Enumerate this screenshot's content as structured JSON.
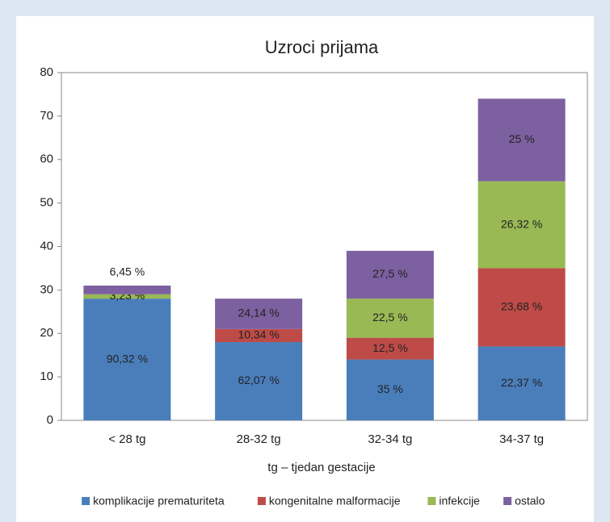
{
  "chart_data": {
    "type": "stacked_bar",
    "title": "Uzroci prijama",
    "x_label": "tg – tjedan gestacije",
    "categories": [
      "< 28 tg",
      "28-32 tg",
      "32-34 tg",
      "34-37 tg"
    ],
    "series": [
      {
        "name": "komplikacije prematuriteta",
        "color": "#4a7ebb",
        "values": [
          28,
          18,
          14,
          17
        ],
        "segment_labels": [
          "90,32 %",
          "62,07 %",
          "35 %",
          "22,37 %"
        ]
      },
      {
        "name": "kongenitalne malformacije",
        "color": "#be4b48",
        "values": [
          0,
          3,
          5,
          18
        ],
        "segment_labels": [
          null,
          "10,34 %",
          "12,5 %",
          "23,68 %"
        ]
      },
      {
        "name": "infekcije",
        "color": "#98b954",
        "values": [
          1,
          0,
          9,
          20
        ],
        "segment_labels": [
          "3,23 %",
          null,
          "22,5 %",
          "26,32 %"
        ]
      },
      {
        "name": "ostalo",
        "color": "#7d60a0",
        "values": [
          2,
          7,
          11,
          19
        ],
        "segment_labels": [
          "6,45 %",
          "24,14 %",
          "27,5 %",
          "25 %"
        ]
      }
    ],
    "ylim": [
      0,
      80
    ],
    "yticks": [
      0,
      10,
      20,
      30,
      40,
      50,
      60,
      70,
      80
    ],
    "grid": false,
    "legend": "bottom"
  }
}
